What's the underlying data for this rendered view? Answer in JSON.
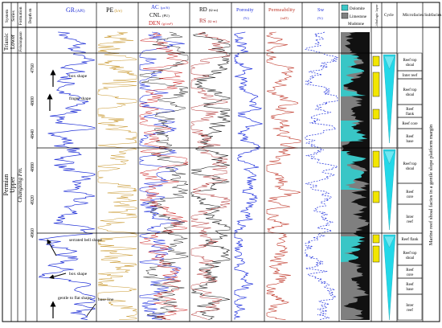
{
  "header": {
    "system": "System",
    "series": "Series",
    "formation": "Formation",
    "depth": "Depth m",
    "gr": "GR",
    "gr_unit": "(API)",
    "pe": "PE",
    "pe_unit": "(b/e)",
    "ac": "AC",
    "ac_unit": "(μs/ft)",
    "cnl": "CNL",
    "cnl_unit": "(PU)",
    "den": "DEN",
    "den_unit": "(g/cm³)",
    "rd": "RD",
    "rd_unit": "(Ω·m)",
    "rs": "RS",
    "rs_unit": "(Ω·m)",
    "porosity": "Porosity",
    "porosity_unit": "(%)",
    "permeability": "Permeability",
    "permeability_unit": "(mD)",
    "sw": "Sw",
    "sw_unit": "(%)",
    "litho_layer": "Lithologic layer",
    "cycle": "Cycle",
    "microfacies": "Microfacies",
    "subfacies": "Subfacies"
  },
  "strat": {
    "system_upper": "Triassic",
    "series_upper": "Lower",
    "formation_upper": "Feixianguan",
    "system_lower": "Permian",
    "series_lower": "Upper",
    "formation_lower": "Changxing Fm."
  },
  "legend": {
    "dolomite": "Dolomite",
    "limestone": "Limestone",
    "mudstone": "Mudstone"
  },
  "depth_ticks": [
    "4760",
    "4800",
    "4840",
    "4880",
    "4920",
    "4960"
  ],
  "annotations": {
    "box_shape_1": "box shape",
    "finger_shape": "finger shape",
    "serrated_bell_shape": "serrated bell shape",
    "box_shape_2": "box shape",
    "gentle_to_flat_shape": "gentle to flat shape",
    "base_line": "base line"
  },
  "microfacies": [
    "Reef top shoal",
    "Inter reef",
    "Reef top shoal",
    "Reef flank",
    "Reef core",
    "Reef base",
    "Reef top shoal",
    "Reef core",
    "Inter reef",
    "Reef flank",
    "Reef top shoal",
    "Reef core",
    "Reef base",
    "Inter reef"
  ],
  "subfacies_text": "Marine reef shoal facies in a gentle slope platform margin",
  "colors": {
    "gr": "#1f2fd6",
    "pe": "#c8962a",
    "ac": "#2233dd",
    "cnl": "#222222",
    "den": "#cc2222",
    "rd": "#222222",
    "rs": "#b03030",
    "porosity": "#2233dd",
    "permeability": "#c0392b",
    "sw": "#2233dd",
    "dolomite": "#39c6c6",
    "limestone": "#7f7f7f",
    "cycle": "#22d8e8",
    "layer": "#f2e600"
  }
}
